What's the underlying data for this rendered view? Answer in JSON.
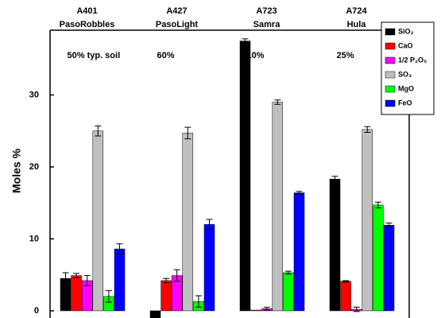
{
  "chart_data": {
    "type": "bar",
    "y_label": "Moles %",
    "categories": [
      "A401",
      "A427",
      "A723",
      "A724"
    ],
    "category_names": [
      "PasoRobbles",
      "PasoLight",
      "Samra",
      "Hula"
    ],
    "annotations": [
      "50% typ. soil",
      "60%",
      "10%",
      "25%"
    ],
    "series": [
      {
        "name": "SiO₂",
        "color": "#000000",
        "values": [
          4.5,
          -1.0,
          37.5,
          18.3
        ],
        "errors": [
          0.8,
          null,
          0.3,
          0.4
        ]
      },
      {
        "name": "CaO",
        "color": "#ff0000",
        "values": [
          4.9,
          4.2,
          0.1,
          4.1
        ],
        "errors": [
          0.3,
          0.3,
          null,
          0.1
        ]
      },
      {
        "name": "1/2 P₂O₅",
        "color": "#ff00ff",
        "values": [
          4.2,
          4.9,
          0.3,
          0.2
        ],
        "errors": [
          0.7,
          0.8,
          0.2,
          0.3
        ]
      },
      {
        "name": "SO₃",
        "color": "#c0c0c0",
        "values": [
          25.0,
          24.7,
          29.0,
          25.2
        ],
        "errors": [
          0.7,
          0.8,
          0.3,
          0.4
        ]
      },
      {
        "name": "MgO",
        "color": "#00ff00",
        "values": [
          2.0,
          1.3,
          5.3,
          14.7
        ],
        "errors": [
          0.8,
          0.8,
          0.2,
          0.4
        ]
      },
      {
        "name": "FeO",
        "color": "#0000ff",
        "values": [
          8.6,
          12.0,
          16.4,
          11.9
        ],
        "errors": [
          0.7,
          0.7,
          0.2,
          0.3
        ]
      }
    ],
    "ylim": [
      -1,
      39
    ],
    "yticks": [
      0,
      10,
      20,
      30
    ]
  }
}
